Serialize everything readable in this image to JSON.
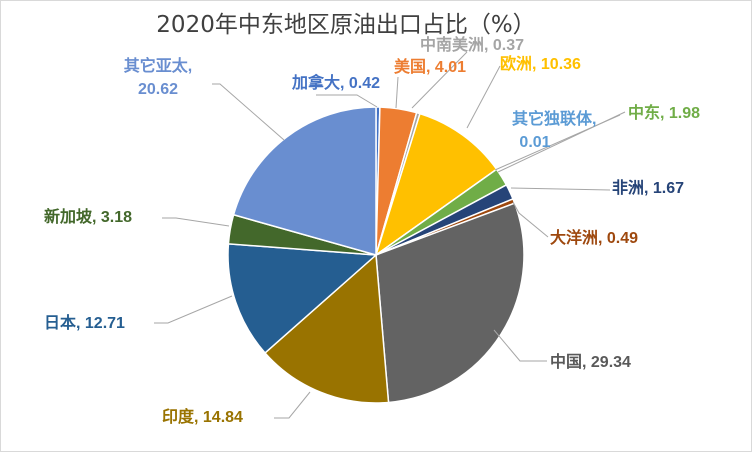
{
  "chart_data": {
    "type": "pie",
    "title": "2020年中东地区原油出口占比（%）",
    "slices": [
      {
        "label": "加拿大",
        "value": 0.42,
        "color": "#4472C4"
      },
      {
        "label": "美国",
        "value": 4.01,
        "color": "#ED7D31"
      },
      {
        "label": "中南美洲",
        "value": 0.37,
        "color": "#A5A5A5"
      },
      {
        "label": "欧洲",
        "value": 10.36,
        "color": "#FFC000"
      },
      {
        "label": "其它独联体",
        "value": 0.01,
        "color": "#5B9BD5"
      },
      {
        "label": "中东",
        "value": 1.98,
        "color": "#70AD47"
      },
      {
        "label": "非洲",
        "value": 1.67,
        "color": "#264478"
      },
      {
        "label": "大洋洲",
        "value": 0.49,
        "color": "#9E480E"
      },
      {
        "label": "中国",
        "value": 29.34,
        "color": "#636363"
      },
      {
        "label": "印度",
        "value": 14.84,
        "color": "#997300"
      },
      {
        "label": "日本",
        "value": 12.71,
        "color": "#255E91"
      },
      {
        "label": "新加坡",
        "value": 3.18,
        "color": "#43682B"
      },
      {
        "label": "其它亚太",
        "value": 20.62,
        "color": "#698ED0"
      }
    ]
  }
}
